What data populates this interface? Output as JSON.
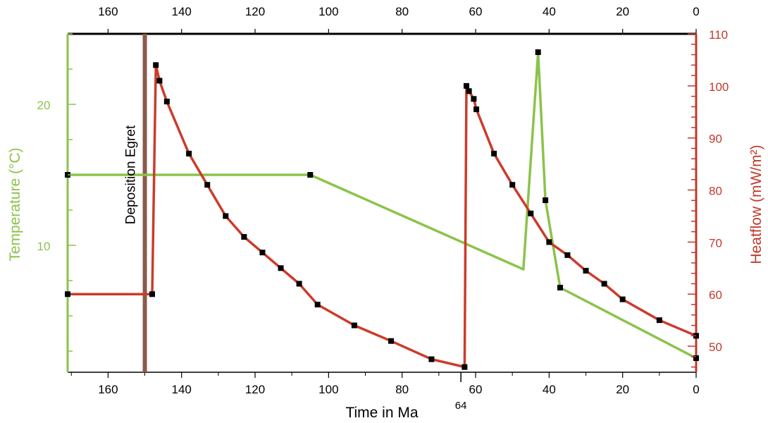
{
  "chart_data": {
    "type": "line",
    "xlabel": "Time in Ma",
    "x_reversed": true,
    "xlim": [
      171,
      0
    ],
    "x_ticks": [
      "160",
      "140",
      "120",
      "100",
      "80",
      "60",
      "40",
      "20",
      "0"
    ],
    "x_top_ticks": [
      "160",
      "140",
      "120",
      "100",
      "80",
      "60",
      "40",
      "20",
      "0"
    ],
    "x_extra_label": "64",
    "y_left": {
      "label": "Temperature (°C)",
      "ylim": [
        1,
        25
      ],
      "ticks": [
        "10",
        "20"
      ],
      "color": "#8bc34a"
    },
    "y_right": {
      "label": "Heatflow (mW/m²)",
      "ylim": [
        45,
        110
      ],
      "ticks": [
        "50",
        "60",
        "70",
        "80",
        "90",
        "100",
        "110"
      ],
      "color": "#c0392b"
    },
    "annotation": {
      "text": "Deposition Egret",
      "x": 150,
      "color": "#8b5a4a"
    },
    "series": [
      {
        "axis": "left",
        "color": "#8bc34a",
        "x": [
          171,
          105,
          47,
          43,
          41,
          37,
          0
        ],
        "y": [
          15,
          15,
          8.3,
          23.7,
          13.2,
          7,
          2
        ],
        "markers_x": [
          171,
          105,
          43,
          41,
          37,
          0
        ],
        "markers_y": [
          15,
          15,
          23.7,
          13.2,
          7,
          2
        ]
      },
      {
        "axis": "right",
        "color": "#cc3b2b",
        "x": [
          171,
          148,
          147,
          146,
          144,
          138,
          133,
          128,
          123,
          118,
          113,
          108,
          103,
          93,
          83,
          72,
          63,
          62.5,
          61.8,
          60.5,
          59.8,
          55,
          50,
          45,
          40,
          35,
          30,
          25,
          20,
          10,
          0
        ],
        "y": [
          60,
          60,
          104,
          101,
          97,
          87,
          81,
          75,
          71,
          68,
          65,
          62,
          58,
          54,
          51,
          47.5,
          46,
          100,
          99,
          97.5,
          95.5,
          87,
          81,
          75.5,
          70,
          67.5,
          64.5,
          62,
          59,
          55,
          52
        ]
      }
    ]
  }
}
